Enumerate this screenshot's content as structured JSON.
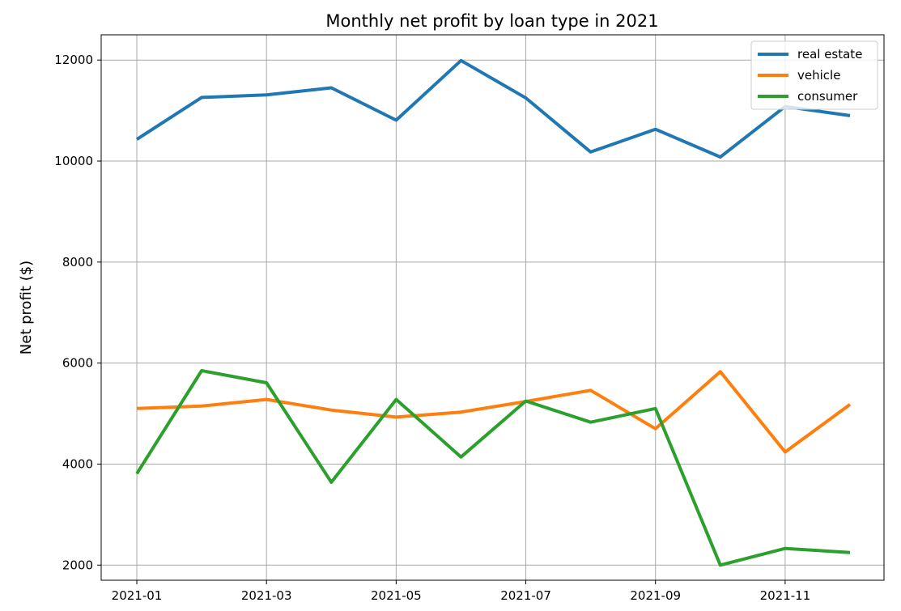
{
  "chart_data": {
    "type": "line",
    "title": "Monthly net profit by loan type in 2021",
    "xlabel": "",
    "ylabel": "Net profit ($)",
    "x": [
      "2021-01",
      "2021-02",
      "2021-03",
      "2021-04",
      "2021-05",
      "2021-06",
      "2021-07",
      "2021-08",
      "2021-09",
      "2021-10",
      "2021-11",
      "2021-12"
    ],
    "x_tick_labels": [
      "2021-01",
      "2021-03",
      "2021-05",
      "2021-07",
      "2021-09",
      "2021-11"
    ],
    "y_ticks": [
      2000,
      4000,
      6000,
      8000,
      10000,
      12000
    ],
    "ylim": [
      1700,
      12500
    ],
    "grid": true,
    "legend_position": "top-right",
    "series": [
      {
        "name": "real estate",
        "color": "#1f77b4",
        "values": [
          10430,
          11260,
          11310,
          11450,
          10810,
          11990,
          11250,
          10180,
          10630,
          10080,
          11080,
          10900
        ]
      },
      {
        "name": "vehicle",
        "color": "#ff7f0e",
        "values": [
          5100,
          5150,
          5280,
          5070,
          4930,
          5030,
          5240,
          5460,
          4700,
          5830,
          4240,
          5180
        ]
      },
      {
        "name": "consumer",
        "color": "#2ca02c",
        "values": [
          3810,
          5850,
          5610,
          3640,
          5280,
          4140,
          5250,
          4830,
          5100,
          2000,
          2330,
          2250
        ]
      }
    ]
  }
}
